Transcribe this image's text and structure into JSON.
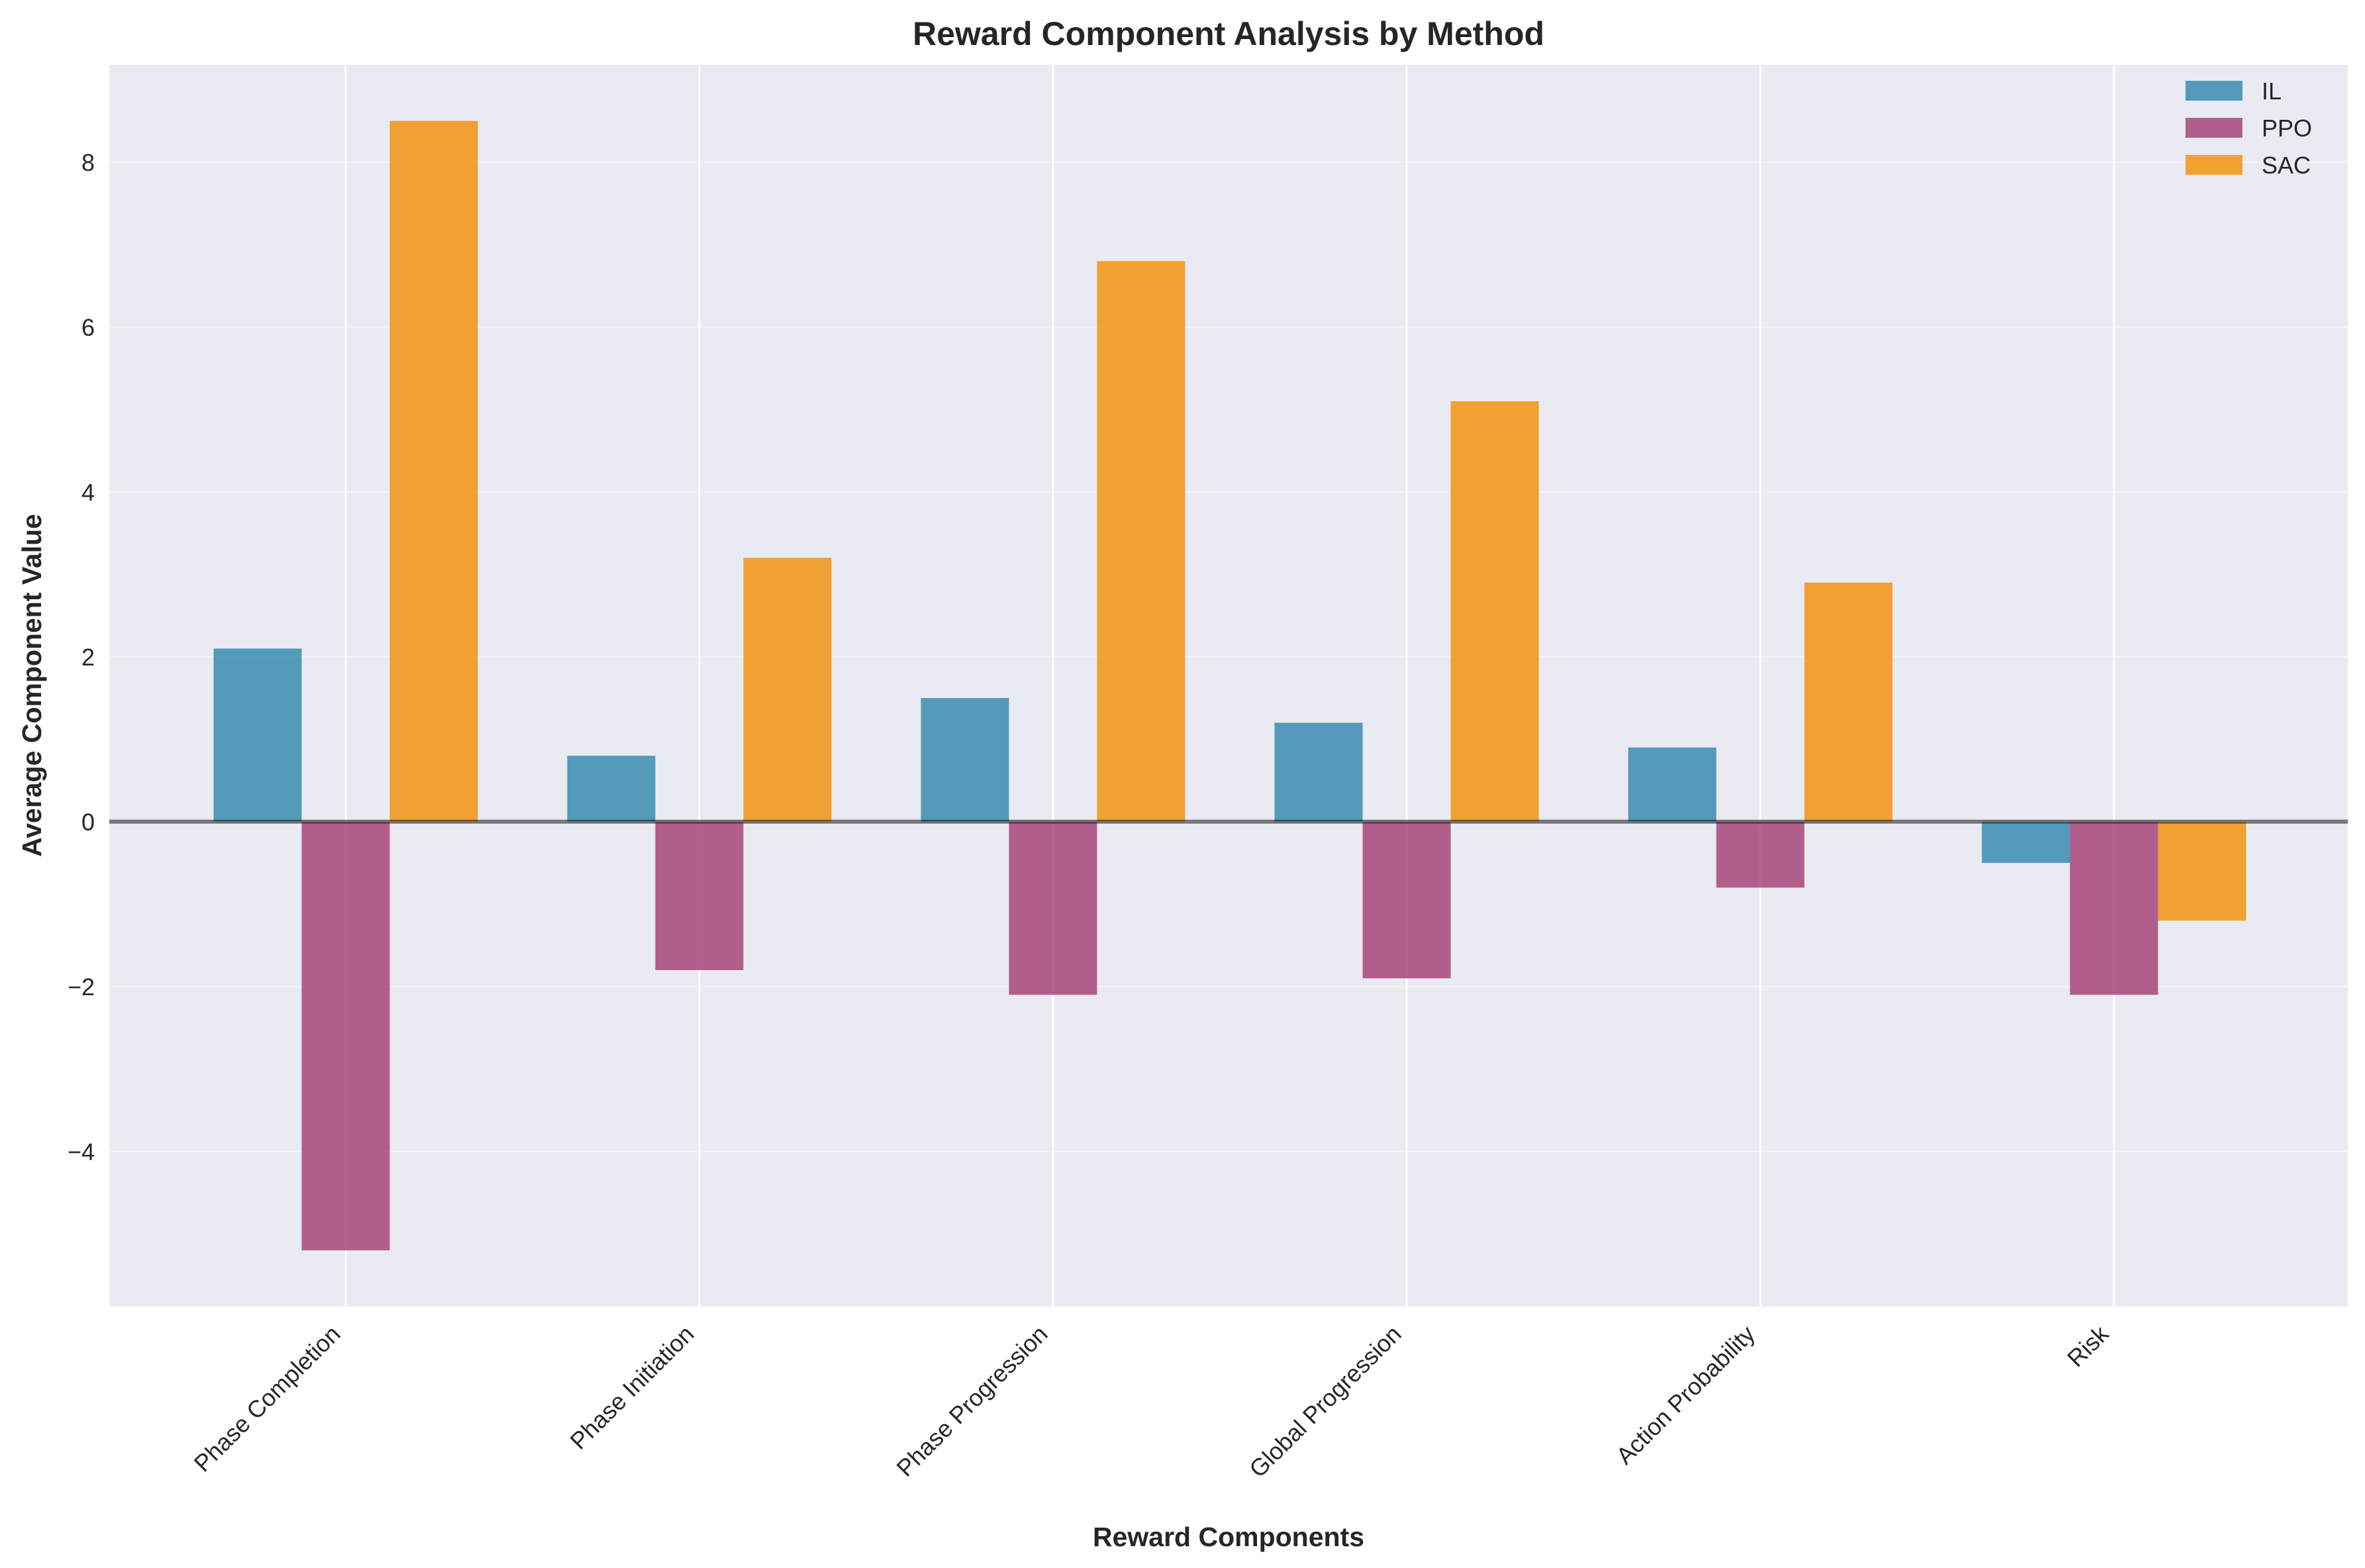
{
  "chart_data": {
    "type": "bar",
    "title": "Reward Component Analysis by Method",
    "xlabel": "Reward Components",
    "ylabel": "Average Component Value",
    "categories": [
      "Phase Completion",
      "Phase Initiation",
      "Phase Progression",
      "Global Progression",
      "Action Probability",
      "Risk"
    ],
    "series": [
      {
        "name": "IL",
        "color": "#2e86ab",
        "values": [
          2.1,
          0.8,
          1.5,
          1.2,
          0.9,
          -0.5
        ]
      },
      {
        "name": "PPO",
        "color": "#a23b72",
        "values": [
          -5.2,
          -1.8,
          -2.1,
          -1.9,
          -0.8,
          -2.1
        ]
      },
      {
        "name": "SAC",
        "color": "#f18f01",
        "values": [
          8.5,
          3.2,
          6.8,
          5.1,
          2.9,
          -1.2
        ]
      }
    ],
    "yticks": [
      -4,
      -2,
      0,
      2,
      4,
      6,
      8
    ],
    "ylim": [
      -5.88,
      9.18
    ],
    "grid": true,
    "legend_position": "top-right",
    "zero_line": true,
    "background_color": "#eaeaf2"
  }
}
